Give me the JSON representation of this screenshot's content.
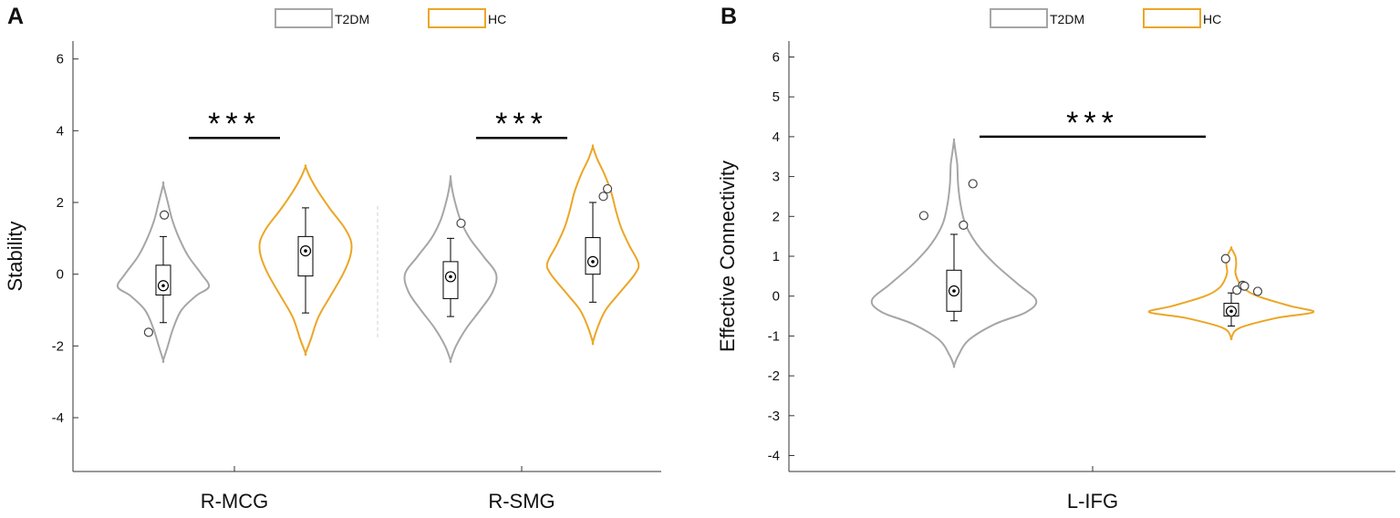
{
  "colors": {
    "t2dm": "#a6a6a6",
    "hc": "#eba626",
    "axis": "#333333",
    "text": "#111111",
    "box": "#000000"
  },
  "chart_data": [
    {
      "panel": "A",
      "type": "violin",
      "title": "",
      "xlabel": "",
      "ylabel": "Stability",
      "ylim": [
        -5.5,
        6.5
      ],
      "yticks": [
        -4,
        -2,
        0,
        2,
        4,
        6
      ],
      "categories": [
        "R-MCG",
        "R-SMG"
      ],
      "legend": {
        "position": "top",
        "entries": [
          "T2DM",
          "HC"
        ]
      },
      "significance": [
        {
          "category": "R-MCG",
          "label": "***",
          "y": 3.8
        },
        {
          "category": "R-SMG",
          "label": "***",
          "y": 3.8
        }
      ],
      "groups": [
        {
          "category": "R-MCG",
          "series": "T2DM",
          "violin": {
            "y": [
              -2.4,
              -2.0,
              -1.5,
              -1.0,
              -0.6,
              -0.35,
              0.0,
              0.5,
              1.0,
              1.5,
              2.0,
              2.5
            ],
            "w": [
              0.0,
              0.1,
              0.22,
              0.4,
              0.72,
              1.0,
              0.84,
              0.55,
              0.35,
              0.2,
              0.1,
              0.0
            ]
          },
          "box": {
            "whisker_low": -1.35,
            "q1": -0.58,
            "median": -0.32,
            "q3": 0.25,
            "whisker_high": 1.05
          },
          "outliers": [
            {
              "y": 1.65,
              "dx": 0.01
            },
            {
              "y": -1.62,
              "dx": -0.14
            }
          ]
        },
        {
          "category": "R-MCG",
          "series": "HC",
          "violin": {
            "y": [
              -2.2,
              -1.8,
              -1.2,
              -0.6,
              0.0,
              0.5,
              0.9,
              1.3,
              1.8,
              2.3,
              2.7,
              3.0
            ],
            "w": [
              0.0,
              0.12,
              0.28,
              0.55,
              0.82,
              0.98,
              1.0,
              0.85,
              0.55,
              0.28,
              0.1,
              0.0
            ]
          },
          "box": {
            "whisker_low": -1.08,
            "q1": -0.05,
            "median": 0.65,
            "q3": 1.05,
            "whisker_high": 1.85
          },
          "outliers": []
        },
        {
          "category": "R-SMG",
          "series": "T2DM",
          "violin": {
            "y": [
              -2.4,
              -2.0,
              -1.5,
              -1.0,
              -0.5,
              0.0,
              0.5,
              1.0,
              1.5,
              2.0,
              2.4,
              2.7
            ],
            "w": [
              0.0,
              0.12,
              0.35,
              0.65,
              0.92,
              1.0,
              0.72,
              0.42,
              0.22,
              0.1,
              0.03,
              0.0
            ]
          },
          "box": {
            "whisker_low": -1.18,
            "q1": -0.68,
            "median": -0.07,
            "q3": 0.35,
            "whisker_high": 1.0
          },
          "outliers": [
            {
              "y": 1.42,
              "dx": 0.1
            }
          ]
        },
        {
          "category": "R-SMG",
          "series": "HC",
          "violin": {
            "y": [
              -1.9,
              -1.5,
              -1.0,
              -0.5,
              0.0,
              0.3,
              0.8,
              1.3,
              1.8,
              2.3,
              2.8,
              3.2,
              3.55
            ],
            "w": [
              0.0,
              0.1,
              0.28,
              0.6,
              0.92,
              1.0,
              0.8,
              0.62,
              0.5,
              0.4,
              0.25,
              0.1,
              0.0
            ]
          },
          "box": {
            "whisker_low": -0.78,
            "q1": 0.0,
            "median": 0.35,
            "q3": 1.02,
            "whisker_high": 2.0
          },
          "outliers": [
            {
              "y": 2.17,
              "dx": 0.1
            },
            {
              "y": 2.38,
              "dx": 0.14
            }
          ]
        }
      ]
    },
    {
      "panel": "B",
      "type": "violin",
      "title": "",
      "xlabel": "",
      "ylabel": "Effective Connectivity",
      "ylim": [
        -4.4,
        6.4
      ],
      "yticks": [
        -4,
        -3,
        -2,
        -1,
        0,
        1,
        2,
        3,
        4,
        5,
        6
      ],
      "categories": [
        "L-IFG"
      ],
      "legend": {
        "position": "top",
        "entries": [
          "T2DM",
          "HC"
        ]
      },
      "significance": [
        {
          "category": "L-IFG",
          "label": "***",
          "y": 4.0
        }
      ],
      "groups": [
        {
          "category": "L-IFG",
          "series": "T2DM",
          "violin": {
            "y": [
              -1.75,
              -1.5,
              -1.1,
              -0.7,
              -0.4,
              -0.1,
              0.3,
              0.8,
              1.3,
              1.8,
              2.3,
              2.8,
              3.3,
              3.6,
              3.9
            ],
            "w": [
              0.0,
              0.05,
              0.18,
              0.5,
              0.88,
              1.0,
              0.78,
              0.5,
              0.28,
              0.14,
              0.08,
              0.05,
              0.04,
              0.02,
              0.0
            ]
          },
          "box": {
            "whisker_low": -0.62,
            "q1": -0.38,
            "median": 0.13,
            "q3": 0.65,
            "whisker_high": 1.55
          },
          "outliers": [
            {
              "y": 2.02,
              "dx": -0.16
            },
            {
              "y": 1.78,
              "dx": 0.05
            },
            {
              "y": 2.82,
              "dx": 0.1
            }
          ]
        },
        {
          "category": "L-IFG",
          "series": "HC",
          "violin": {
            "y": [
              -1.05,
              -0.8,
              -0.55,
              -0.4,
              -0.25,
              0.0,
              0.2,
              0.4,
              0.6,
              0.8,
              1.0,
              1.2
            ],
            "w": [
              0.0,
              0.1,
              0.55,
              1.0,
              0.72,
              0.32,
              0.15,
              0.08,
              0.05,
              0.06,
              0.05,
              0.0
            ]
          },
          "box": {
            "whisker_low": -0.75,
            "q1": -0.5,
            "median": -0.38,
            "q3": -0.18,
            "whisker_high": 0.08
          },
          "outliers": [
            {
              "y": 0.94,
              "dx": -0.03
            },
            {
              "y": 0.15,
              "dx": 0.03
            },
            {
              "y": 0.27,
              "dx": 0.06
            },
            {
              "y": 0.25,
              "dx": 0.07
            },
            {
              "y": 0.12,
              "dx": 0.14
            }
          ]
        }
      ]
    }
  ]
}
